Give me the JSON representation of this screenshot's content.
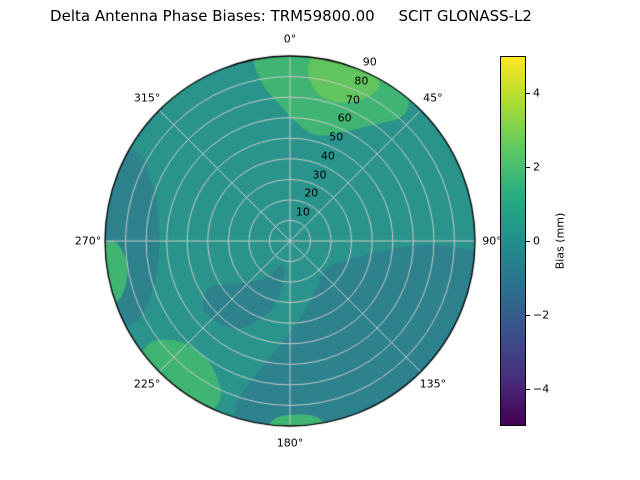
{
  "figure": {
    "background": "#ffffff"
  },
  "chart_data": {
    "type": "polar_contour",
    "title": "Delta Antenna Phase Biases: TRM59800.00     SCIT GLONASS-L2",
    "title_parts": {
      "prefix": "Delta Antenna Phase Biases:",
      "antenna": "TRM59800.00",
      "label": "SCIT GLONASS-L2"
    },
    "angular_ticks_deg": [
      0,
      45,
      90,
      135,
      180,
      225,
      270,
      315
    ],
    "angular_tick_labels": [
      "0°",
      "45°",
      "90°",
      "135°",
      "180°",
      "225°",
      "270°",
      "315°"
    ],
    "radial_ticks": [
      10,
      20,
      30,
      40,
      50,
      60,
      70,
      80,
      90
    ],
    "radial_max": 90,
    "radial_label_azimuth_deg": 24,
    "grid": true,
    "colorbar": {
      "label": "Bias (mm)",
      "min": -5,
      "max": 5,
      "ticks": [
        {
          "value": 4,
          "label": "4"
        },
        {
          "value": 2,
          "label": "2"
        },
        {
          "value": 0,
          "label": "0"
        },
        {
          "value": -2,
          "label": "−2"
        },
        {
          "value": -4,
          "label": "−4"
        }
      ],
      "colormap": "viridis"
    },
    "bias_field_mm": {
      "base_band": [
        0,
        1
      ],
      "regions": [
        {
          "band_mm": [
            -1,
            0
          ],
          "color_key": "band_m1_0",
          "points": [
            [
              96,
              95
            ],
            [
              115,
              95
            ],
            [
              135,
              95
            ],
            [
              155,
              95
            ],
            [
              175,
              95
            ],
            [
              192,
              95
            ],
            [
              198,
              86
            ],
            [
              196,
              72
            ],
            [
              186,
              52
            ],
            [
              170,
              36
            ],
            [
              150,
              26
            ],
            [
              128,
              22
            ],
            [
              108,
              30
            ],
            [
              96,
              45
            ],
            [
              92,
              62
            ],
            [
              92,
              78
            ]
          ]
        },
        {
          "band_mm": [
            -1,
            0
          ],
          "color_key": "band_m1_0",
          "points": [
            [
              246,
              95
            ],
            [
              262,
              95
            ],
            [
              278,
              95
            ],
            [
              296,
              95
            ],
            [
              300,
              85
            ],
            [
              292,
              72
            ],
            [
              276,
              64
            ],
            [
              258,
              66
            ],
            [
              246,
              76
            ],
            [
              242,
              86
            ]
          ]
        },
        {
          "band_mm": [
            -1,
            0
          ],
          "color_key": "band_m1_0",
          "points": [
            [
              196,
              12
            ],
            [
              214,
              22
            ],
            [
              232,
              34
            ],
            [
              240,
              46
            ],
            [
              230,
              54
            ],
            [
              212,
              50
            ],
            [
              198,
              38
            ],
            [
              190,
              24
            ]
          ]
        },
        {
          "band_mm": [
            1,
            2
          ],
          "color_key": "band_1_2",
          "points": [
            [
              -10,
              95
            ],
            [
              8,
              95
            ],
            [
              25,
              95
            ],
            [
              38,
              92
            ],
            [
              42,
              82
            ],
            [
              36,
              70
            ],
            [
              26,
              59
            ],
            [
              14,
              53
            ],
            [
              4,
              57
            ],
            [
              -4,
              66
            ],
            [
              -10,
              78
            ]
          ]
        },
        {
          "band_mm": [
            1,
            2
          ],
          "color_key": "band_1_2",
          "points": [
            [
              252,
              95
            ],
            [
              266,
              95
            ],
            [
              270,
              86
            ],
            [
              262,
              80
            ],
            [
              252,
              86
            ]
          ]
        },
        {
          "band_mm": [
            1,
            2
          ],
          "color_key": "band_1_2",
          "points": [
            [
              210,
              95
            ],
            [
              228,
              95
            ],
            [
              234,
              85
            ],
            [
              228,
              73
            ],
            [
              216,
              70
            ],
            [
              206,
              78
            ],
            [
              204,
              88
            ]
          ]
        },
        {
          "band_mm": [
            1,
            2
          ],
          "color_key": "band_1_2",
          "points": [
            [
              170,
              95
            ],
            [
              186,
              95
            ],
            [
              184,
              86
            ],
            [
              172,
              86
            ]
          ]
        },
        {
          "band_mm": [
            2,
            3
          ],
          "color_key": "band_2_3",
          "points": [
            [
              10,
              95
            ],
            [
              24,
              95
            ],
            [
              30,
              86
            ],
            [
              24,
              74
            ],
            [
              12,
              72
            ],
            [
              6,
              84
            ]
          ]
        }
      ]
    },
    "colors": {
      "base_fill": "#2a948c",
      "band_m1_0": "#2d828e",
      "band_1_2": "#40b573",
      "band_2_3": "#62c45e",
      "grid": "#c8c8c8",
      "outline": "#000000",
      "viridis_stops": [
        "#440154",
        "#472d7b",
        "#3b518b",
        "#2c718e",
        "#21908d",
        "#27ad81",
        "#5cc863",
        "#aadc32",
        "#fde725"
      ]
    }
  }
}
